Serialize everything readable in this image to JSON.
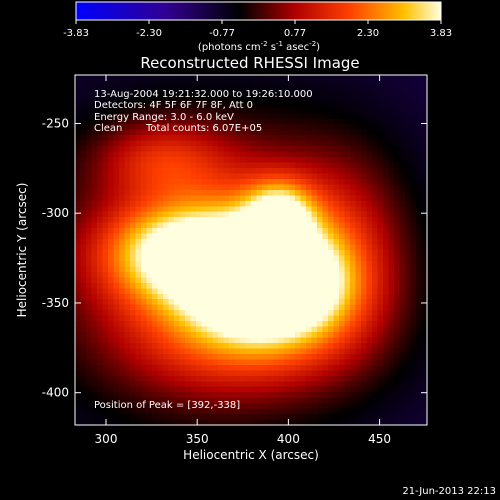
{
  "chart_data": {
    "type": "heatmap",
    "title": "Reconstructed RHESSI Image",
    "xlabel": "Heliocentric X (arcsec)",
    "ylabel": "Heliocentric Y (arcsec)",
    "xlim": [
      283,
      476
    ],
    "ylim": [
      -418,
      -223
    ],
    "x_ticks": [
      300,
      350,
      400,
      450
    ],
    "y_ticks": [
      -250,
      -300,
      -350,
      -400
    ],
    "colorbar": {
      "min": -3.83,
      "max": 3.83,
      "ticks": [
        "-3.83",
        "-2.30",
        "-0.77",
        "0.77",
        "2.30",
        "3.83"
      ],
      "label_main": "(photons cm",
      "label_sup1": "-2",
      "label_mid1": " s",
      "label_sup2": "-1",
      "label_mid2": " asec",
      "label_sup3": "-2",
      "label_end": ")"
    },
    "annotations": {
      "time_range": "13-Aug-2004 19:21:32.000 to 19:26:10.000",
      "detectors": "Detectors: 4F 5F 6F 7F 8F, Att 0",
      "energy": "Energy Range: 3.0 - 6.0 keV",
      "clean": "Clean",
      "total_counts": "Total counts: 6.07E+05",
      "peak": "Position of Peak = [392,-338]"
    },
    "peak_position": [
      392,
      -338
    ],
    "sources": [
      {
        "x": 392,
        "y": -338,
        "amp": 0.9,
        "sx": 26,
        "sy": 20
      },
      {
        "x": 340,
        "y": -322,
        "amp": 0.65,
        "sx": 30,
        "sy": 18
      },
      {
        "x": 395,
        "y": -300,
        "amp": 0.55,
        "sx": 13,
        "sy": 13
      },
      {
        "x": 375,
        "y": -325,
        "amp": 0.35,
        "sx": 40,
        "sy": 35
      },
      {
        "x": 330,
        "y": -270,
        "amp": 0.3,
        "sx": 25,
        "sy": 15
      },
      {
        "x": 375,
        "y": -365,
        "amp": 0.35,
        "sx": 45,
        "sy": 25
      },
      {
        "x": 430,
        "y": -320,
        "amp": 0.25,
        "sx": 25,
        "sy": 40
      },
      {
        "x": 355,
        "y": -330,
        "amp": 0.35,
        "sx": 70,
        "sy": 65
      }
    ],
    "colors": {
      "cmap": [
        "#0000ff",
        "#400090",
        "#000000",
        "#b00000",
        "#ff4000",
        "#ffc000",
        "#ffffe0"
      ]
    }
  },
  "footer": {
    "timestamp": "21-Jun-2013 22:13"
  }
}
